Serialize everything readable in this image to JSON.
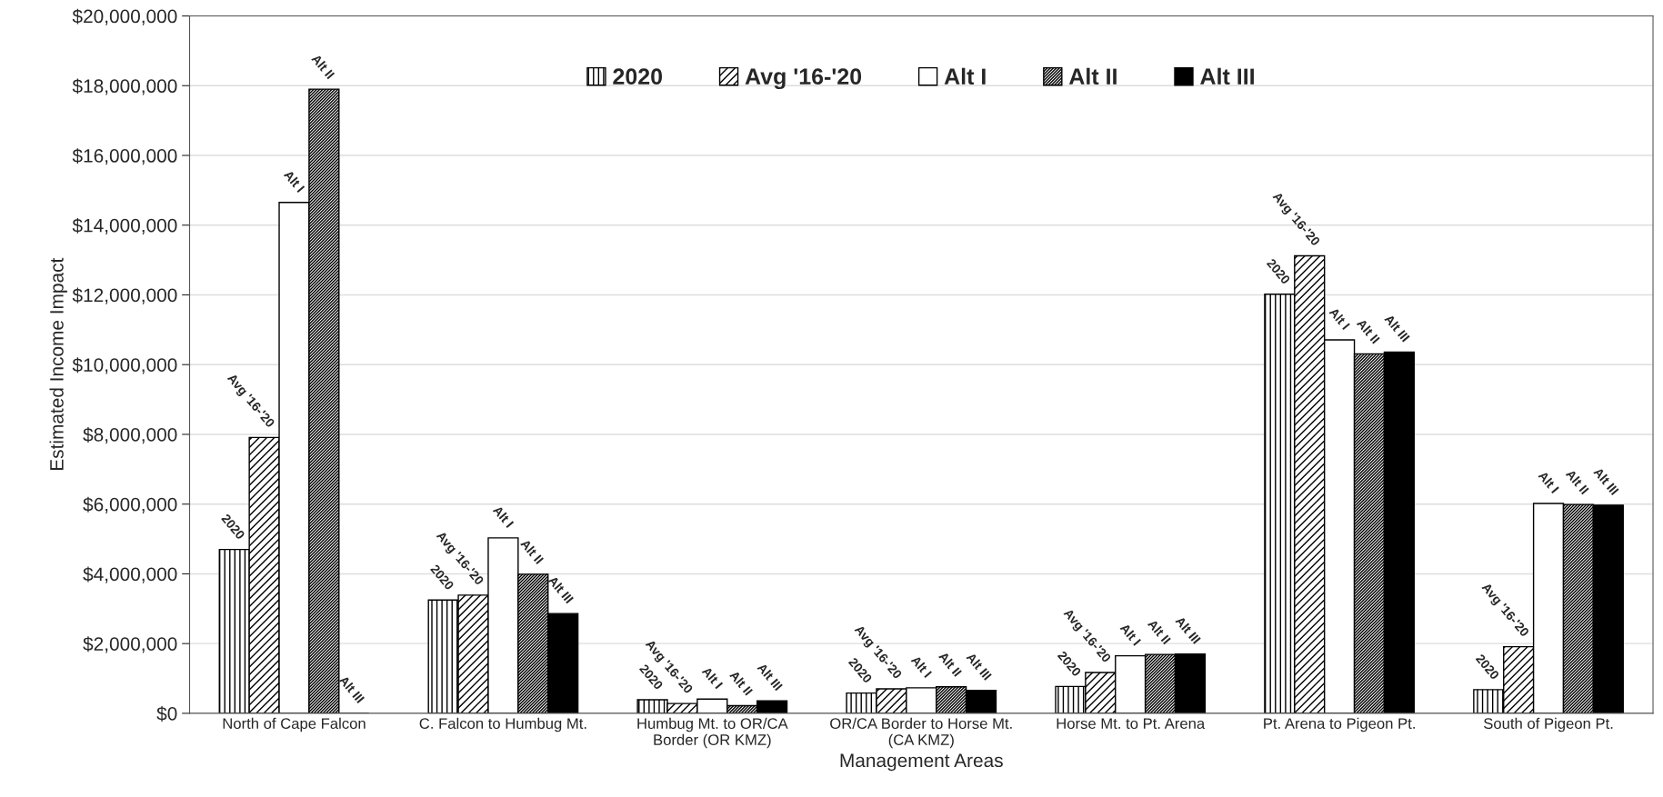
{
  "chart_data": {
    "type": "bar",
    "xlabel": "Management Areas",
    "ylabel": "Estimated Income Impact",
    "categories": [
      "North of Cape Falcon",
      "C. Falcon to Humbug Mt.",
      "Humbug Mt. to OR/CA\nBorder (OR KMZ)",
      "OR/CA Border to Horse Mt.\n(CA KMZ)",
      "Horse Mt. to Pt. Arena",
      "Pt. Arena to Pigeon Pt.",
      "South of Pigeon Pt."
    ],
    "series": [
      {
        "name": "2020",
        "color": "#000000",
        "values": [
          4700000,
          3250000,
          390000,
          580000,
          770000,
          12020000,
          680000
        ]
      },
      {
        "name": "Avg '16-'20",
        "color": "#000000",
        "values": [
          7910000,
          3390000,
          280000,
          700000,
          1170000,
          13120000,
          1910000
        ]
      },
      {
        "name": "Alt I",
        "color": "#ffffff",
        "values": [
          14650000,
          5030000,
          410000,
          730000,
          1650000,
          10710000,
          6020000
        ]
      },
      {
        "name": "Alt II",
        "color": "#000000",
        "values": [
          17900000,
          3990000,
          220000,
          760000,
          1690000,
          10310000,
          5990000
        ]
      },
      {
        "name": "Alt III",
        "color": "#000000",
        "values": [
          0,
          2860000,
          360000,
          660000,
          1700000,
          10360000,
          5970000
        ]
      }
    ],
    "ylim": [
      0,
      20000000
    ],
    "yticks": [
      {
        "value": 0,
        "label": "$0"
      },
      {
        "value": 2000000,
        "label": "$2,000,000"
      },
      {
        "value": 4000000,
        "label": "$4,000,000"
      },
      {
        "value": 6000000,
        "label": "$6,000,000"
      },
      {
        "value": 8000000,
        "label": "$8,000,000"
      },
      {
        "value": 10000000,
        "label": "$10,000,000"
      },
      {
        "value": 12000000,
        "label": "$12,000,000"
      },
      {
        "value": 14000000,
        "label": "$14,000,000"
      },
      {
        "value": 16000000,
        "label": "$16,000,000"
      },
      {
        "value": 18000000,
        "label": "$18,000,000"
      },
      {
        "value": 20000000,
        "label": "$20,000,000"
      }
    ],
    "grid": "y",
    "legend": "top"
  }
}
